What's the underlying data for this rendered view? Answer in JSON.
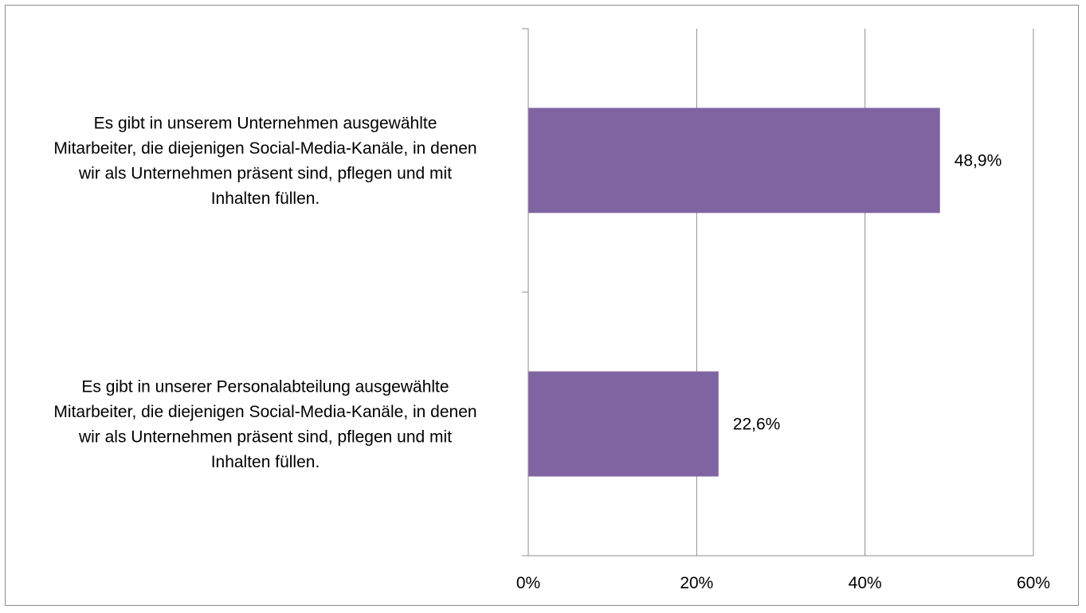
{
  "chart_data": {
    "type": "bar",
    "orientation": "horizontal",
    "categories": [
      "Es gibt in unserem Unternehmen ausgewählte Mitarbeiter, die diejenigen Social-Media-Kanäle, in denen wir als Unternehmen präsent sind, pflegen und mit Inhalten füllen.",
      "Es gibt in unserer Personalabteilung ausgewählte Mitarbeiter, die diejenigen Social-Media-Kanäle, in denen wir als Unternehmen präsent sind, pflegen und mit Inhalten füllen."
    ],
    "category_lines": [
      [
        "Es gibt in unserem Unternehmen ausgewählte",
        "Mitarbeiter, die diejenigen Social-Media-Kanäle, in denen",
        "wir als Unternehmen präsent sind, pflegen und mit",
        "Inhalten füllen."
      ],
      [
        "Es gibt in unserer Personalabteilung ausgewählte",
        "Mitarbeiter, die diejenigen Social-Media-Kanäle, in denen",
        "wir als Unternehmen präsent sind, pflegen und mit",
        "Inhalten füllen."
      ]
    ],
    "values": [
      48.9,
      22.6
    ],
    "data_labels": [
      "48,9%",
      "22,6%"
    ],
    "xlim": [
      0,
      60
    ],
    "xticks": [
      0,
      20,
      40,
      60
    ],
    "xtick_labels": [
      "0%",
      "20%",
      "40%",
      "60%"
    ],
    "title": "",
    "xlabel": "",
    "ylabel": "",
    "grid": true,
    "legend": "none",
    "bar_color": "#8064a2",
    "grid_color": "#8c8c8c",
    "axis_color": "#8c8c8c"
  }
}
